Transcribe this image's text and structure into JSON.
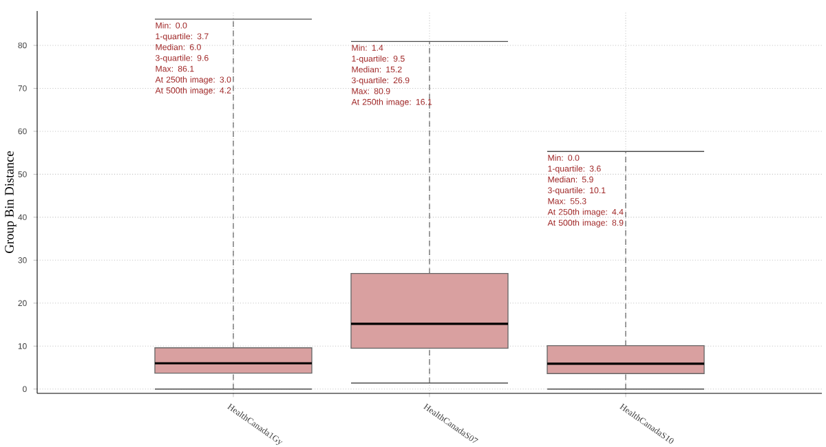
{
  "chart_data": {
    "type": "box",
    "ylabel": "Group Bin Distance",
    "categories": [
      "HealthCanada1Gy",
      "HealthCanadaS07",
      "HealthCanadaS10"
    ],
    "series": [
      {
        "color": "#d9a0a0",
        "boxes": [
          {
            "low": 0.0,
            "q1": 3.7,
            "median": 6.0,
            "q3": 9.6,
            "high": 86.1
          },
          {
            "low": 1.4,
            "q1": 9.5,
            "median": 15.2,
            "q3": 26.9,
            "high": 80.9
          },
          {
            "low": 0.0,
            "q1": 3.6,
            "median": 5.9,
            "q3": 10.1,
            "high": 55.3
          }
        ]
      }
    ],
    "ylim": [
      -1,
      88
    ],
    "yticks": [
      0,
      10,
      20,
      30,
      40,
      50,
      60,
      70,
      80
    ],
    "grid": true,
    "annotations": [
      "Min: 0.0\n1-quartile: 3.7\nMedian: 6.0\n3-quartile: 9.6\nMax: 86.1\nAt 250th image: 3.0\nAt 500th image: 4.2",
      "Min: 1.4\n1-quartile: 9.5\nMedian: 15.2\n3-quartile: 26.9\nMax: 80.9\nAt 250th image: 16.1",
      "Min: 0.0\n1-quartile: 3.6\nMedian: 5.9\n3-quartile: 10.1\nMax: 55.3\nAt 250th image: 4.4\nAt 500th image: 8.9"
    ]
  }
}
